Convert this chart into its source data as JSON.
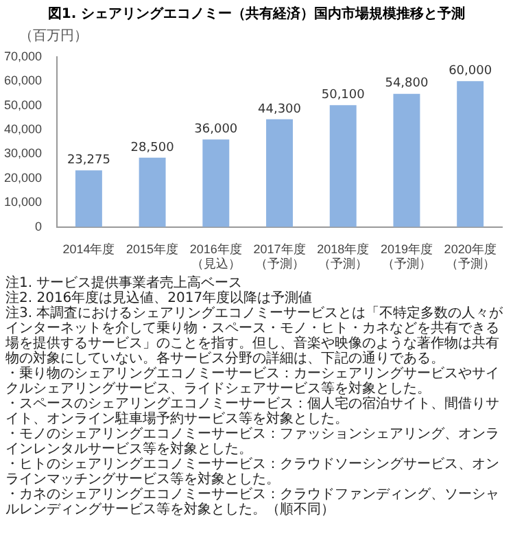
{
  "chart_data": {
    "type": "bar",
    "title": "図1. シェアリングエコノミー（共有経済）国内市場規模推移と予測",
    "ylabel": "（百万円）",
    "categories": [
      "2014年度",
      "2015年度",
      "2016年度（見込）",
      "2017年度（予測）",
      "2018年度（予測）",
      "2019年度（予測）",
      "2020年度（予測）"
    ],
    "values": [
      23275,
      28500,
      36000,
      44300,
      50100,
      54800,
      60000
    ],
    "color": "#8db3e2",
    "value_labels": [
      "23,275",
      "28,500",
      "36,000",
      "44,300",
      "50,100",
      "54,800",
      "60,000"
    ],
    "ylim": [
      0,
      70000
    ],
    "yticks": [
      0,
      {
        "value": 10000,
        "label": "10,000"
      },
      {
        "value": 20000,
        "label": "20,000"
      },
      {
        "value": 30000,
        "label": "30,000"
      },
      {
        "value": 40000,
        "label": "40,000"
      },
      {
        "value": 50000,
        "label": "50,000"
      },
      {
        "value": 60000,
        "label": "60,000"
      },
      {
        "value": 70000,
        "label": "70,000"
      }
    ],
    "grid": false,
    "legend": false,
    "annotations": [
      "注1. サービス提供事業者売上高ベース",
      "注2. 2016年度は見込値、2017年度以降は予測値",
      "注3. 本調査におけるシェアリングエコノミーサービスとは「不特定多数の人々がインターネットを介して乗り物・スペース・モノ・ヒト・カネなどを共有できる場を提供するサービス」のことを指す。但し、音楽や映像のような著作物は共有物の対象にしていない。各サービス分野の詳細は、下記の通りである。",
      "・乗り物のシェアリングエコノミーサービス：カーシェアリングサービスやサイクルシェアリングサービス、ライドシェアサービス等を対象とした。",
      "・スペースのシェアリングエコノミーサービス：個人宅の宿泊サイト、間借りサイト、オンライン駐車場予約サービス等を対象とした。",
      "・モノのシェアリングエコノミーサービス：ファッションシェアリング、オンラインレンタルサービス等を対象とした。",
      "・ヒトのシェアリングエコノミーサービス：クラウドソーシングサービス、オンラインマッチングサービス等を対象とした。",
      "・カネのシェアリングエコノミーサービス：クラウドファンディング、ソーシャルレンディングサービス等を対象とした。（順不同）"
    ]
  }
}
